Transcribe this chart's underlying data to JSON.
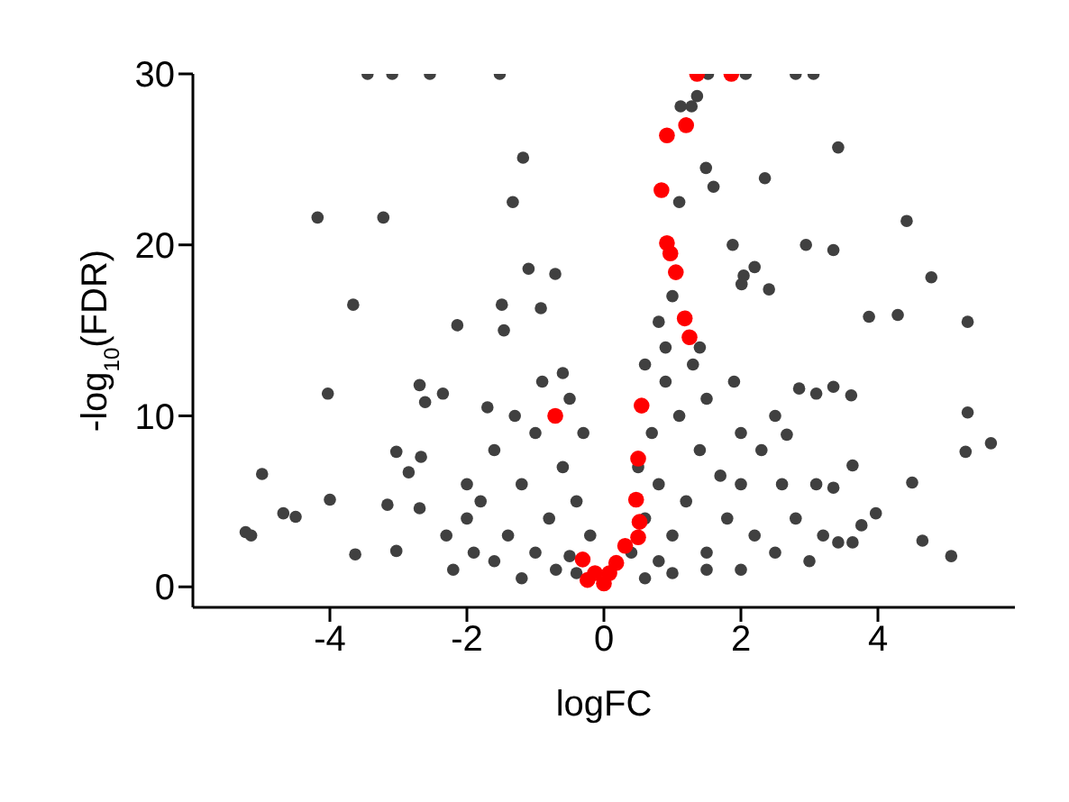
{
  "chart_data": {
    "type": "scatter",
    "xlabel": "logFC",
    "ylabel": "-log$_{10}$(FDR)",
    "xlim": [
      -6,
      6
    ],
    "ylim": [
      -1.2,
      30
    ],
    "xticks": [
      -4,
      -2,
      0,
      2,
      4
    ],
    "yticks": [
      0,
      10,
      20,
      30
    ],
    "grid": false,
    "legend": false,
    "marker": "circle",
    "series": [
      {
        "color": "#404040",
        "x": [
          -3.45,
          -3.09,
          -2.54,
          -1.52,
          1.52,
          2.07,
          2.8,
          3.06,
          -1.18,
          -1.33,
          -4.18,
          -3.22,
          -1.1,
          -0.71,
          -1.49,
          -3.66,
          -2.14,
          -0.92,
          -1.46,
          -4.03,
          -5.23,
          -5.15,
          -4.68,
          -4.5,
          -4.99,
          -4.0,
          -3.63,
          -3.03,
          -3.16,
          -2.69,
          -2.85,
          -3.03,
          -2.67,
          -2.69,
          -2.61,
          -2.35,
          3.42,
          1.36,
          1.28,
          1.12,
          1.49,
          1.6,
          1.1,
          2.35,
          4.42,
          1.88,
          2.95,
          3.35,
          4.78,
          2.2,
          2.04,
          4.29,
          3.87,
          5.31,
          2.41,
          2.01,
          5.31,
          5.65,
          5.28,
          4.5,
          4.65,
          5.07,
          3.97,
          3.76,
          3.42,
          3.63,
          3.35,
          3.63,
          3.35,
          3.61,
          2.85,
          3.1,
          2.67,
          0.4,
          0.6,
          0.8,
          0.7,
          0.9,
          1.0,
          1.2,
          1.4,
          1.5,
          1.8,
          2.0,
          2.2,
          2.5,
          2.8,
          3.0,
          1.1,
          1.5,
          2.0,
          2.3,
          0.6,
          1.0,
          1.5,
          2.0,
          2.6,
          0.5,
          1.3,
          1.9,
          2.5,
          3.1,
          3.2,
          0.8,
          1.7,
          0.6,
          0.8,
          1.0,
          1.4,
          0.9,
          -0.2,
          -0.4,
          -0.3,
          -0.5,
          -0.6,
          -0.8,
          -1.0,
          -1.2,
          -1.4,
          -1.6,
          -1.9,
          -2.2,
          -1.0,
          -1.3,
          -1.6,
          -1.8,
          -2.0,
          -2.3,
          -0.7,
          -0.4,
          -1.2,
          -0.9,
          -0.6,
          -1.7,
          -2.0,
          -0.5
        ],
        "values": [
          30,
          30,
          30,
          30,
          30,
          30,
          30,
          30,
          25.1,
          22.5,
          21.6,
          21.6,
          18.6,
          18.3,
          16.5,
          16.5,
          15.3,
          16.3,
          15,
          11.3,
          3.2,
          3,
          4.3,
          4.1,
          6.6,
          5.1,
          1.9,
          2.1,
          4.8,
          4.6,
          6.7,
          7.9,
          7.6,
          11.8,
          10.8,
          11.3,
          25.7,
          28.7,
          28.1,
          28.1,
          24.5,
          23.4,
          22.5,
          23.9,
          21.4,
          20,
          20,
          19.7,
          18.1,
          18.7,
          18.2,
          15.9,
          15.8,
          15.5,
          17.4,
          17.7,
          10.2,
          8.4,
          7.9,
          6.1,
          2.7,
          1.8,
          4.3,
          3.6,
          2.6,
          2.6,
          5.8,
          7.1,
          11.7,
          11.2,
          11.6,
          11.3,
          8.9,
          2,
          4,
          6,
          9,
          12,
          3,
          5,
          8,
          2,
          4,
          6,
          3,
          2,
          4,
          1.5,
          10,
          11,
          9,
          8,
          0.5,
          0.8,
          1,
          1,
          6,
          7,
          13,
          12,
          10,
          6,
          3,
          1.5,
          6.5,
          13,
          15.5,
          17,
          14,
          14,
          3,
          5,
          9,
          11,
          7,
          4,
          2,
          6,
          3,
          1.5,
          2,
          1,
          9,
          10,
          8,
          5,
          4,
          3,
          1,
          0.8,
          0.5,
          12,
          12.5,
          10.5,
          6,
          1.8
        ]
      },
      {
        "color": "#ff0000",
        "x": [
          1.36,
          1.86,
          0.92,
          1.2,
          0.84,
          0.92,
          0.97,
          1.05,
          1.18,
          1.25,
          0.55,
          0.5,
          0.47,
          0.52,
          0.5,
          0.31,
          0.18,
          0,
          0.08,
          -0.71,
          -0.31,
          -0.13,
          -0.24
        ],
        "values": [
          30,
          30,
          26.4,
          27,
          23.2,
          20.1,
          19.5,
          18.4,
          15.7,
          14.6,
          10.6,
          7.5,
          5.1,
          3.8,
          2.9,
          2.4,
          1.4,
          0.2,
          0.8,
          10,
          1.6,
          0.8,
          0.4
        ]
      }
    ]
  }
}
